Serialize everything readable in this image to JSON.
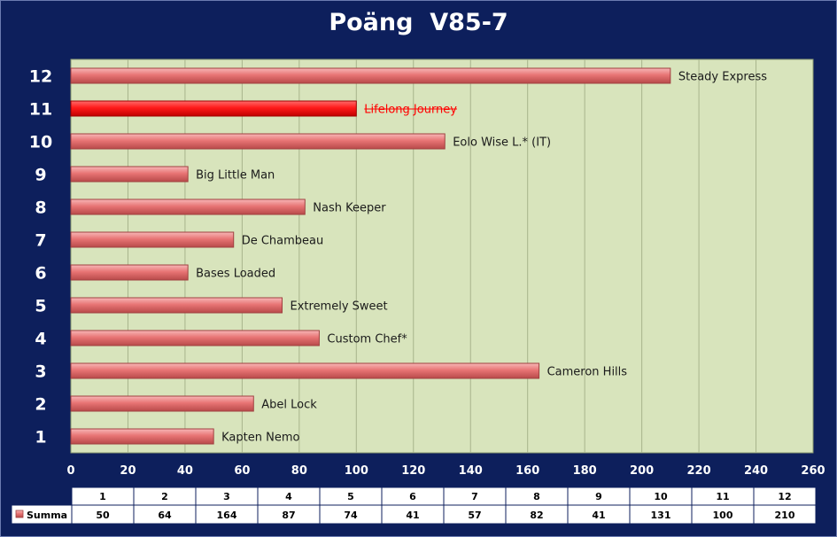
{
  "title": "Poäng  V85-7",
  "chart_data": {
    "type": "bar",
    "orientation": "horizontal",
    "categories": [
      "1",
      "2",
      "3",
      "4",
      "5",
      "6",
      "7",
      "8",
      "9",
      "10",
      "11",
      "12"
    ],
    "bar_labels": [
      "Kapten Nemo",
      "Abel Lock",
      "Cameron Hills",
      "Custom Chef*",
      "Extremely Sweet",
      "Bases Loaded",
      "De Chambeau",
      "Nash Keeper",
      "Big Little Man",
      "Eolo Wise L.* (IT)",
      "Lifelong Journey",
      "Steady Express"
    ],
    "highlighted_category": "11",
    "series": [
      {
        "name": "Summa",
        "values": [
          50,
          64,
          164,
          87,
          74,
          41,
          57,
          82,
          41,
          131,
          100,
          210
        ]
      }
    ],
    "xlim": [
      0,
      260
    ],
    "xticks": [
      0,
      20,
      40,
      60,
      80,
      100,
      120,
      140,
      160,
      180,
      200,
      220,
      240,
      260
    ],
    "grid": true,
    "colors": {
      "bar": "#e06666",
      "highlight": "#ff0000",
      "plot_bg": "#d8e4bc",
      "frame_bg": "#0d1f5c"
    },
    "data_table": {
      "header": [
        "1",
        "2",
        "3",
        "4",
        "5",
        "6",
        "7",
        "8",
        "9",
        "10",
        "11",
        "12"
      ],
      "row_label": "Summa",
      "row_values": [
        "50",
        "64",
        "164",
        "87",
        "74",
        "41",
        "57",
        "82",
        "41",
        "131",
        "100",
        "210"
      ]
    }
  }
}
